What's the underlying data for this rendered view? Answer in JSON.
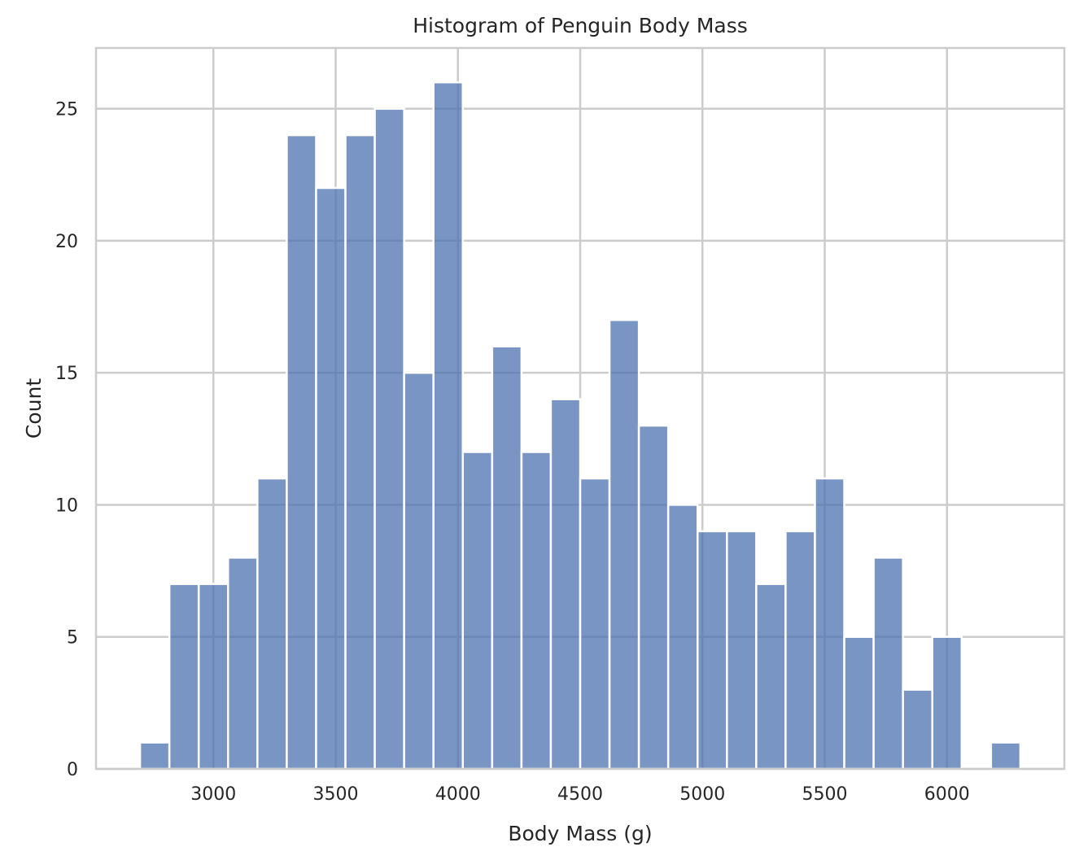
{
  "chart_data": {
    "type": "histogram",
    "title": "Histogram of Penguin Body Mass",
    "xlabel": "Body Mass (g)",
    "ylabel": "Count",
    "xlim": [
      2520,
      6480
    ],
    "ylim": [
      0,
      27.3
    ],
    "xticks": [
      3000,
      3500,
      4000,
      4500,
      5000,
      5500,
      6000
    ],
    "yticks": [
      0,
      5,
      10,
      15,
      20,
      25
    ],
    "grid": true,
    "bar_color": "#4c72b0",
    "bar_opacity": 0.75,
    "grid_color": "#cccccc",
    "bin_start": 2700,
    "bin_width": 120,
    "counts": [
      1,
      7,
      7,
      8,
      11,
      24,
      22,
      24,
      25,
      15,
      26,
      12,
      16,
      12,
      14,
      11,
      17,
      13,
      10,
      9,
      9,
      7,
      9,
      11,
      5,
      8,
      3,
      5,
      0,
      1
    ]
  }
}
